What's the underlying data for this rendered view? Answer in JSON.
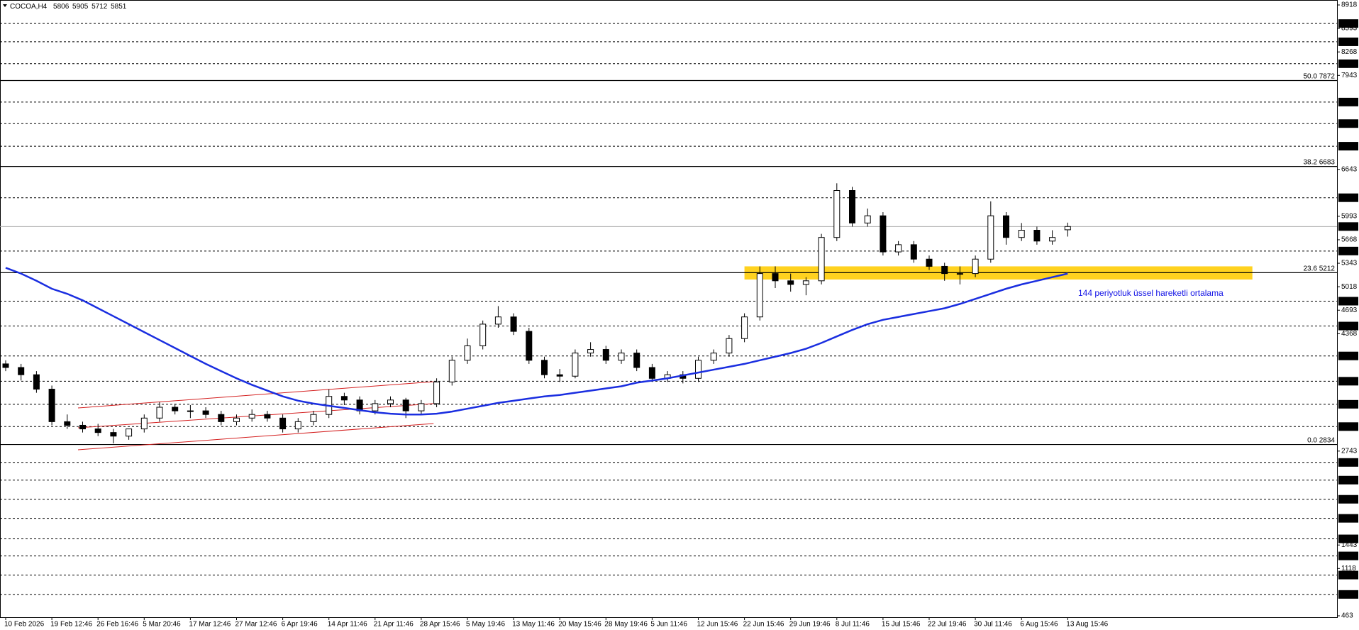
{
  "chart_data": {
    "type": "candlestick",
    "symbol": "COCOA,H4",
    "categories": [
      "10 Feb 2026",
      null,
      null,
      "19 Feb 12:46",
      null,
      null,
      "26 Feb 16:46",
      null,
      null,
      "5 Mar 20:46",
      null,
      null,
      "17 Mar 12:46",
      null,
      null,
      "27 Mar 12:46",
      null,
      null,
      "6 Apr 19:46",
      null,
      null,
      "14 Apr 11:46",
      null,
      null,
      "21 Apr 11:46",
      null,
      null,
      "28 Apr 15:46",
      null,
      null,
      "5 May 19:46",
      null,
      null,
      "13 May 11:46",
      null,
      null,
      "20 May 15:46",
      null,
      null,
      "28 May 19:46",
      null,
      null,
      "5 Jun 11:46",
      null,
      null,
      "12 Jun 15:46",
      null,
      null,
      "22 Jun 15:46",
      null,
      null,
      "29 Jun 19:46",
      null,
      null,
      "8 Jul 11:46",
      null,
      null,
      "15 Jul 15:46",
      null,
      null,
      "22 Jul 19:46",
      null,
      null,
      "30 Jul 11:46",
      null,
      null,
      "6 Aug 15:46",
      null,
      null,
      "13 Aug 15:46"
    ],
    "open": [
      3950,
      3900,
      3800,
      3600,
      3150,
      3100,
      3050,
      3000,
      2950,
      3050,
      3200,
      3350,
      3300,
      3300,
      3250,
      3150,
      3200,
      3250,
      3200,
      3050,
      3150,
      3250,
      3500,
      3450,
      3300,
      3400,
      3450,
      3300,
      3400,
      3700,
      4000,
      4200,
      4500,
      4600,
      4400,
      4000,
      3800,
      3780,
      4100,
      4150,
      4000,
      4100,
      3900,
      3750,
      3800,
      3750,
      4000,
      4100,
      4300,
      4600,
      5200,
      5100,
      5050,
      5100,
      5700,
      6350,
      5900,
      6000,
      5500,
      5600,
      5400,
      5300,
      5200,
      5200,
      5400,
      6000,
      5700,
      5800,
      5650,
      5806
    ],
    "high": [
      4000,
      3950,
      3850,
      3650,
      3250,
      3150,
      3120,
      3050,
      3020,
      3250,
      3420,
      3400,
      3380,
      3350,
      3300,
      3250,
      3320,
      3300,
      3250,
      3200,
      3300,
      3600,
      3550,
      3500,
      3450,
      3500,
      3480,
      3450,
      3750,
      4050,
      4300,
      4550,
      4750,
      4650,
      4450,
      4050,
      3880,
      4150,
      4250,
      4200,
      4150,
      4150,
      3950,
      3850,
      3850,
      4050,
      4150,
      4350,
      4650,
      5300,
      5300,
      5200,
      5150,
      5750,
      6450,
      6400,
      6100,
      6050,
      5650,
      5650,
      5450,
      5350,
      5300,
      5450,
      6200,
      6050,
      5900,
      5850,
      5800,
      5905
    ],
    "low": [
      3850,
      3720,
      3550,
      3100,
      3050,
      3000,
      2950,
      2850,
      2900,
      3000,
      3150,
      3250,
      3200,
      3200,
      3100,
      3100,
      3150,
      3150,
      3000,
      3000,
      3100,
      3200,
      3380,
      3250,
      3250,
      3350,
      3200,
      3250,
      3350,
      3650,
      3950,
      4150,
      4450,
      4350,
      3950,
      3750,
      3700,
      3750,
      4050,
      3950,
      3950,
      3850,
      3700,
      3700,
      3680,
      3700,
      3950,
      4050,
      4250,
      4550,
      5000,
      4950,
      4900,
      5050,
      5650,
      5850,
      5850,
      5450,
      5450,
      5350,
      5250,
      5100,
      5050,
      5150,
      5350,
      5600,
      5650,
      5600,
      5600,
      5712
    ],
    "close": [
      3900,
      3800,
      3600,
      3150,
      3100,
      3050,
      3000,
      2950,
      3050,
      3200,
      3350,
      3300,
      3300,
      3250,
      3150,
      3200,
      3250,
      3200,
      3050,
      3150,
      3250,
      3500,
      3450,
      3300,
      3400,
      3450,
      3300,
      3400,
      3700,
      4000,
      4200,
      4500,
      4600,
      4400,
      4000,
      3800,
      3780,
      4100,
      4150,
      4000,
      4100,
      3900,
      3750,
      3800,
      3750,
      4000,
      4100,
      4300,
      4600,
      5200,
      5100,
      5050,
      5100,
      5700,
      6350,
      5900,
      6000,
      5500,
      5600,
      5400,
      5300,
      5200,
      5200,
      5400,
      6000,
      5700,
      5800,
      5650,
      5700,
      5851
    ],
    "up_color": "#ffffff",
    "down_color": "#000000",
    "ylim": [
      463,
      8918
    ],
    "yticks": [
      8918,
      8593,
      8268,
      7943,
      6643,
      5993,
      5668,
      5343,
      5018,
      4693,
      4368,
      2743,
      1443,
      1118,
      463
    ],
    "ema": {
      "color": "#1a2ee0",
      "values": [
        5280,
        5200,
        5100,
        4990,
        4920,
        4830,
        4720,
        4610,
        4500,
        4390,
        4280,
        4170,
        4060,
        3950,
        3850,
        3750,
        3660,
        3580,
        3500,
        3440,
        3400,
        3370,
        3340,
        3310,
        3280,
        3260,
        3250,
        3250,
        3260,
        3290,
        3330,
        3370,
        3410,
        3440,
        3470,
        3500,
        3520,
        3550,
        3580,
        3610,
        3640,
        3690,
        3720,
        3750,
        3790,
        3830,
        3870,
        3910,
        3950,
        4000,
        4050,
        4100,
        4160,
        4240,
        4330,
        4420,
        4500,
        4560,
        4600,
        4640,
        4680,
        4720,
        4780,
        4850,
        4920,
        4990,
        5050,
        5100,
        5150,
        5200
      ]
    },
    "annotation": "144 periyotluk üssel hareketli ortalama",
    "levels": [
      8661,
      8408,
      8105,
      7574,
      7276,
      6963,
      6250,
      5512,
      4818,
      4474,
      4060,
      3710,
      3391,
      3082,
      2586,
      2341,
      2076,
      1812,
      1528,
      1292,
      1027,
      759
    ],
    "fib": [
      {
        "level": "50.0",
        "value": 7872
      },
      {
        "level": "38.2",
        "value": 6683
      },
      {
        "level": "23.6",
        "value": 5212
      },
      {
        "level": "0.0",
        "value": 2834
      }
    ],
    "channel": {
      "color": "#d42020",
      "lines": [
        {
          "x": [
            4.7,
            27.8
          ],
          "y": [
            3340,
            3704
          ]
        },
        {
          "x": [
            4.7,
            27.8
          ],
          "y": [
            3065,
            3400
          ]
        },
        {
          "x": [
            4.7,
            27.8
          ],
          "y": [
            2761,
            3124
          ]
        }
      ]
    },
    "zone": {
      "color": "#ffd21f",
      "x": [
        48,
        81
      ],
      "y": [
        5118,
        5300
      ]
    }
  }
}
